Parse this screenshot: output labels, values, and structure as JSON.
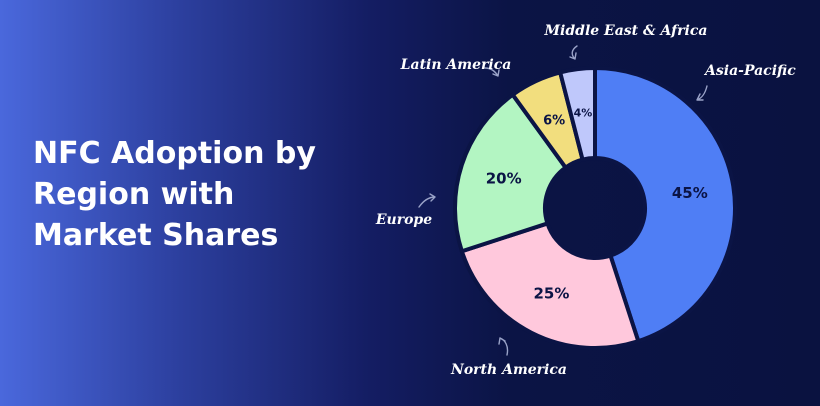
{
  "title": "NFC Adoption by Region with Market Shares",
  "chart_data": {
    "type": "pie",
    "donut": true,
    "title": "NFC Adoption by Region with Market Shares",
    "unit": "%",
    "categories": [
      "Asia-Pacific",
      "North America",
      "Europe",
      "Latin America",
      "Middle East & Africa"
    ],
    "values": [
      45,
      25,
      20,
      6,
      4
    ],
    "labels": [
      "45%",
      "25%",
      "20%",
      "6%",
      "4%"
    ],
    "colors": [
      "#4f7ef5",
      "#ffc8dc",
      "#b3f5c2",
      "#f2de7e",
      "#bfc8fb"
    ],
    "legend": "none",
    "label_style": "curved arrows pointing to slices"
  }
}
